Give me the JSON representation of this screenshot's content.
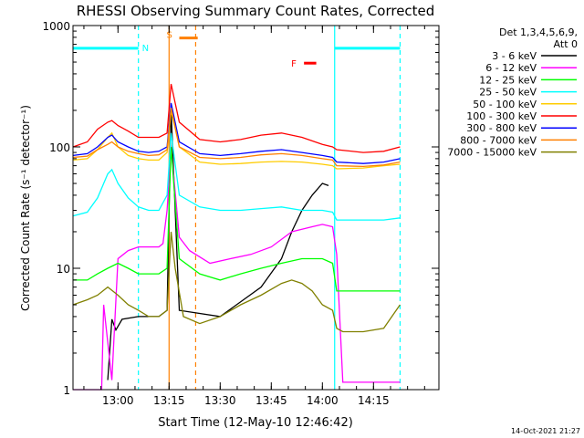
{
  "chart_data": {
    "type": "line",
    "title": "RHESSI Observing Summary Count Rates, Corrected",
    "xlabel": "Start Time (12-May-10 12:46:42)",
    "ylabel": "Corrected Count Rate (s⁻¹ detector⁻¹)",
    "yscale": "log",
    "ylim": [
      1,
      1000
    ],
    "xlim_minutes": [
      12.78,
      14.57
    ],
    "x_ticks": [
      {
        "label": "13:00",
        "t": 13.0
      },
      {
        "label": "13:15",
        "t": 13.25
      },
      {
        "label": "13:30",
        "t": 13.5
      },
      {
        "label": "13:45",
        "t": 13.75
      },
      {
        "label": "14:00",
        "t": 14.0
      },
      {
        "label": "14:15",
        "t": 14.25
      }
    ],
    "y_ticks": [
      {
        "label": "1000",
        "v": 1000
      },
      {
        "label": "100",
        "v": 100
      },
      {
        "label": "10",
        "v": 10
      },
      {
        "label": "1",
        "v": 1
      }
    ],
    "legend": {
      "header": [
        "Det 1,3,4,5,6,9,",
        "Att 0"
      ],
      "placement": "right"
    },
    "flags": [
      {
        "label": "N",
        "color": "#00ffff",
        "start": 12.78,
        "end": 13.1,
        "level": 650
      },
      {
        "label": "S",
        "color": "#ff8000",
        "start": 13.3,
        "end": 13.39,
        "level": 790
      },
      {
        "label": "F",
        "color": "#ff0000",
        "start": 13.91,
        "end": 13.97,
        "level": 490
      },
      {
        "label": "",
        "color": "#00ffff",
        "start": 14.06,
        "end": 14.38,
        "level": 650
      }
    ],
    "vlines": [
      {
        "t": 13.1,
        "color": "#00ffff",
        "style": "dashed"
      },
      {
        "t": 13.25,
        "color": "#ff8000",
        "style": "solid"
      },
      {
        "t": 13.38,
        "color": "#ff8000",
        "style": "dashed"
      },
      {
        "t": 14.06,
        "color": "#00ffff",
        "style": "solid"
      },
      {
        "t": 14.38,
        "color": "#00ffff",
        "style": "dashed"
      }
    ],
    "series": [
      {
        "name": "3 - 6 keV",
        "color": "#000000",
        "x": [
          12.95,
          12.97,
          12.99,
          13.02,
          13.1,
          13.2,
          13.24,
          13.26,
          13.3,
          13.5,
          13.7,
          13.8,
          13.85,
          13.9,
          13.95,
          14.0,
          14.03
        ],
        "y": [
          1.2,
          3.8,
          3.1,
          3.8,
          4.0,
          4.0,
          4.5,
          200,
          4.5,
          4.0,
          7.0,
          12,
          20,
          30,
          40,
          50,
          48
        ]
      },
      {
        "name": "6 - 12 keV",
        "color": "#ff00ff",
        "x": [
          12.78,
          12.92,
          12.93,
          12.97,
          13.0,
          13.05,
          13.1,
          13.15,
          13.2,
          13.22,
          13.24,
          13.26,
          13.3,
          13.35,
          13.45,
          13.55,
          13.65,
          13.75,
          13.85,
          13.95,
          14.0,
          14.05,
          14.07,
          14.1,
          14.35,
          14.38
        ],
        "y": [
          1.0,
          1.0,
          5.0,
          1.2,
          12,
          14,
          15,
          15,
          15,
          16,
          30,
          100,
          18,
          14,
          11,
          12,
          13,
          15,
          20,
          22,
          23,
          22,
          13,
          1.15,
          1.15,
          1.15
        ]
      },
      {
        "name": "12 - 25 keV",
        "color": "#00ff00",
        "x": [
          12.78,
          12.85,
          12.9,
          12.95,
          13.0,
          13.05,
          13.1,
          13.15,
          13.2,
          13.24,
          13.26,
          13.3,
          13.4,
          13.5,
          13.6,
          13.7,
          13.8,
          13.9,
          14.0,
          14.05,
          14.07,
          14.1,
          14.2,
          14.3,
          14.38
        ],
        "y": [
          8,
          8,
          9,
          10,
          11,
          10,
          9,
          9,
          9,
          10,
          100,
          12,
          9,
          8,
          9,
          10,
          11,
          12,
          12,
          11,
          6.5,
          6.5,
          6.5,
          6.5,
          6.5
        ]
      },
      {
        "name": "25 - 50 keV",
        "color": "#00ffff",
        "x": [
          12.78,
          12.85,
          12.9,
          12.95,
          12.97,
          13.0,
          13.05,
          13.1,
          13.15,
          13.2,
          13.24,
          13.26,
          13.3,
          13.4,
          13.5,
          13.6,
          13.7,
          13.8,
          13.9,
          14.0,
          14.05,
          14.07,
          14.2,
          14.3,
          14.38
        ],
        "y": [
          27,
          29,
          38,
          60,
          65,
          50,
          38,
          32,
          30,
          30,
          40,
          130,
          40,
          32,
          30,
          30,
          31,
          32,
          30,
          30,
          29,
          25,
          25,
          25,
          26
        ]
      },
      {
        "name": "50 - 100 keV",
        "color": "#ffcc00",
        "x": [
          12.78,
          12.85,
          12.9,
          12.95,
          12.97,
          13.0,
          13.05,
          13.1,
          13.15,
          13.2,
          13.24,
          13.26,
          13.3,
          13.4,
          13.5,
          13.6,
          13.7,
          13.8,
          13.9,
          14.0,
          14.05,
          14.07,
          14.2,
          14.3,
          14.38
        ],
        "y": [
          78,
          80,
          95,
          120,
          130,
          100,
          85,
          80,
          78,
          78,
          90,
          200,
          100,
          75,
          72,
          73,
          75,
          76,
          75,
          72,
          70,
          66,
          67,
          70,
          72
        ]
      },
      {
        "name": "100 - 300 keV",
        "color": "#ff0000",
        "x": [
          12.78,
          12.85,
          12.9,
          12.95,
          12.97,
          13.0,
          13.05,
          13.1,
          13.15,
          13.2,
          13.24,
          13.26,
          13.3,
          13.4,
          13.5,
          13.6,
          13.7,
          13.8,
          13.9,
          14.0,
          14.05,
          14.07,
          14.2,
          14.3,
          14.38
        ],
        "y": [
          100,
          110,
          140,
          160,
          165,
          150,
          135,
          120,
          120,
          120,
          130,
          330,
          160,
          115,
          110,
          115,
          125,
          130,
          120,
          105,
          100,
          95,
          90,
          92,
          100
        ]
      },
      {
        "name": "300 - 800 keV",
        "color": "#0000ff",
        "x": [
          12.78,
          12.85,
          12.9,
          12.95,
          12.97,
          13.0,
          13.05,
          13.1,
          13.15,
          13.2,
          13.24,
          13.26,
          13.3,
          13.4,
          13.5,
          13.6,
          13.7,
          13.8,
          13.9,
          14.0,
          14.05,
          14.07,
          14.2,
          14.3,
          14.38
        ],
        "y": [
          85,
          88,
          100,
          120,
          125,
          110,
          100,
          92,
          90,
          92,
          100,
          230,
          110,
          88,
          85,
          88,
          92,
          95,
          90,
          85,
          82,
          75,
          73,
          75,
          80
        ]
      },
      {
        "name": "800 - 7000 keV",
        "color": "#ff8000",
        "x": [
          12.78,
          12.85,
          12.9,
          12.95,
          12.97,
          13.0,
          13.05,
          13.1,
          13.15,
          13.2,
          13.24,
          13.26,
          13.3,
          13.4,
          13.5,
          13.6,
          13.7,
          13.8,
          13.9,
          14.0,
          14.05,
          14.07,
          14.2,
          14.3,
          14.38
        ],
        "y": [
          82,
          84,
          95,
          105,
          110,
          100,
          92,
          88,
          85,
          86,
          95,
          210,
          100,
          82,
          80,
          82,
          86,
          88,
          85,
          80,
          78,
          70,
          69,
          71,
          75
        ]
      },
      {
        "name": "7000 - 15000 keV",
        "color": "#808000",
        "x": [
          12.78,
          12.85,
          12.9,
          12.95,
          13.0,
          13.05,
          13.1,
          13.15,
          13.2,
          13.24,
          13.26,
          13.28,
          13.32,
          13.4,
          13.5,
          13.6,
          13.7,
          13.8,
          13.85,
          13.9,
          13.95,
          14.0,
          14.05,
          14.07,
          14.1,
          14.2,
          14.3,
          14.38
        ],
        "y": [
          5,
          5.5,
          6,
          7,
          6,
          5,
          4.5,
          4,
          4,
          4.5,
          20,
          10,
          4,
          3.5,
          4,
          5,
          6,
          7.5,
          8,
          7.5,
          6.5,
          5,
          4.5,
          3.2,
          3.0,
          3.0,
          3.2,
          5
        ]
      }
    ],
    "footer_timestamp": "14-Oct-2021 21:27"
  }
}
